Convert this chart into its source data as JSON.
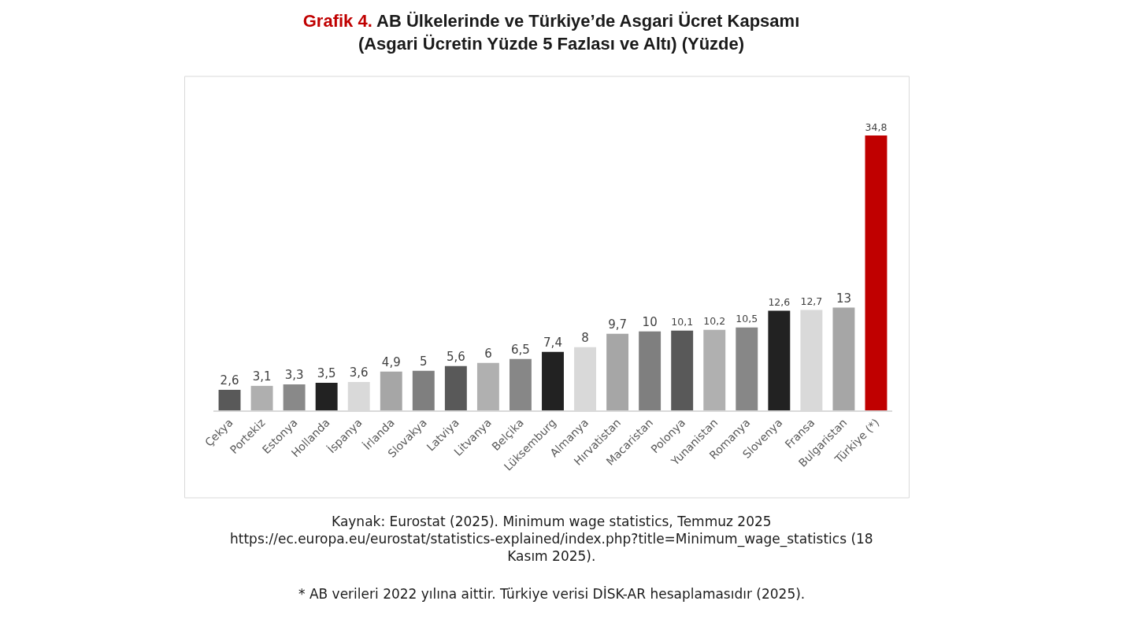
{
  "chart_data": {
    "type": "bar",
    "title": "Grafik 4. AB Ülkelerinde ve Türkiye’de Asgari Ücret Kapsamı",
    "subtitle": "(Asgari Ücretin Yüzde 5 Fazlası ve Altı) (Yüzde)",
    "categories": [
      "Çekya",
      "Portekiz",
      "Estonya",
      "Hollanda",
      "İspanya",
      "İrlanda",
      "Slovakya",
      "Latviya",
      "Litvanya",
      "Belçika",
      "Lüksemburg",
      "Almanya",
      "Hırvatistan",
      "Macaristan",
      "Polonya",
      "Yunanistan",
      "Romanya",
      "Slovenya",
      "Fransa",
      "Bulgaristan",
      "Türkiye (*)"
    ],
    "values": [
      2.6,
      3.1,
      3.3,
      3.5,
      3.6,
      4.9,
      5,
      5.6,
      6,
      6.5,
      7.4,
      8,
      9.7,
      10,
      10.1,
      10.2,
      10.5,
      12.6,
      12.7,
      13,
      34.8
    ],
    "value_labels": [
      "2,6",
      "3,1",
      "3,3",
      "3,5",
      "3,6",
      "4,9",
      "5",
      "5,6",
      "6",
      "6,5",
      "7,4",
      "8",
      "9,7",
      "10",
      "10,1",
      "10,2",
      "10,5",
      "12,6",
      "12,7",
      "13",
      "34,8"
    ],
    "colors": [
      "#595959",
      "#afafaf",
      "#898989",
      "#222222",
      "#d9d9d9",
      "#a6a6a6",
      "#7f7f7f",
      "#595959",
      "#b0b0b0",
      "#878787",
      "#222222",
      "#d9d9d9",
      "#a6a6a6",
      "#7f7f7f",
      "#595959",
      "#b0b0b0",
      "#878787",
      "#222222",
      "#d9d9d9",
      "#a6a6a6",
      "#c00000"
    ],
    "annotations": [
      "Kaynak: Eurostat (2025). Minimum wage statistics, Temmuz 2025\nhttps://ec.europa.eu/eurostat/statistics-explained/index.php?title=Minimum_wage_statistics (18\nKasım 2025).",
      "* AB verileri 2022 yılına aittir. Türkiye verisi DİSK-AR hesaplamasıdır (2025)."
    ]
  }
}
